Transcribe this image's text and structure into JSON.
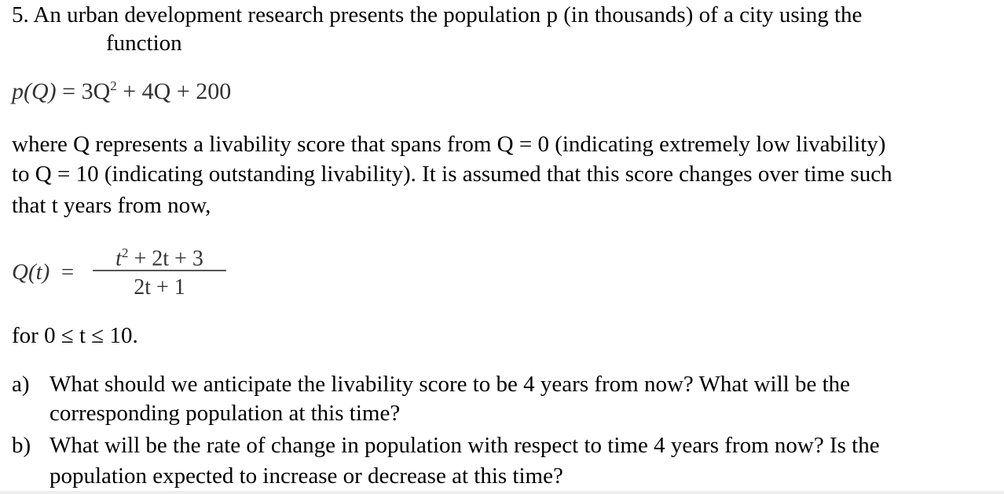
{
  "problem": {
    "number": "5.",
    "intro_line1": "An urban development research presents the population p (in thousands) of a city using the",
    "intro_line2": "function",
    "formula_p": {
      "lhs": "p(Q)",
      "eq": "=",
      "rhs_a": "3Q",
      "rhs_exp": "2",
      "rhs_b": "+ 4Q + 200"
    },
    "para_lines": [
      "where Q represents a livability score that spans from Q = 0 (indicating extremely low livability)",
      "to Q = 10 (indicating outstanding livability). It is assumed that this score changes over time such",
      "that t years from now,"
    ],
    "formula_q": {
      "lhs": "Q(t)",
      "eq": "=",
      "num_t": "t",
      "num_exp": "2",
      "num_rest": "+ 2t + 3",
      "den": "2t + 1"
    },
    "domain": "for 0 ≤ t ≤ 10.",
    "questions": [
      {
        "label": "a)",
        "lines": [
          "What should we anticipate the livability score to be 4 years from now? What will be the",
          "corresponding population at this time?"
        ]
      },
      {
        "label": "b)",
        "lines": [
          "What will be the rate of change in population with respect to time 4 years from now? Is the",
          "population expected to increase or decrease at this time?"
        ]
      }
    ]
  }
}
